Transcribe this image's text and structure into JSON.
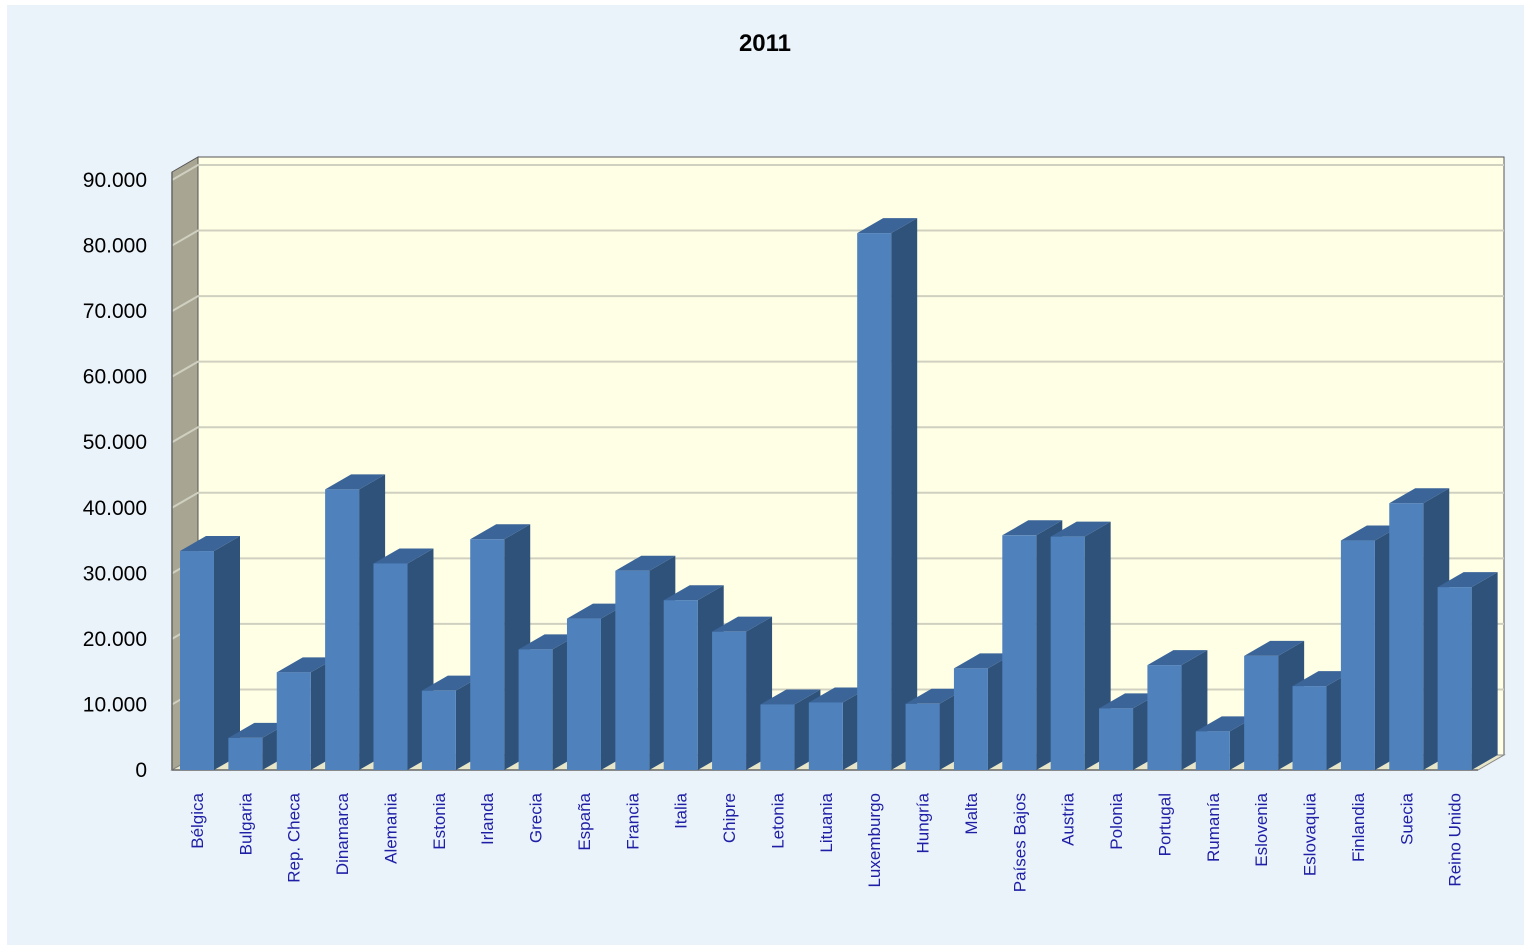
{
  "chart_data": {
    "type": "bar",
    "title": "2011",
    "xlabel": "",
    "ylabel": "",
    "ylim": [
      0,
      90000
    ],
    "yticks": [
      0,
      10000,
      20000,
      30000,
      40000,
      50000,
      60000,
      70000,
      80000,
      90000
    ],
    "ytick_labels": [
      "0",
      "10.000",
      "20.000",
      "30.000",
      "40.000",
      "50.000",
      "60.000",
      "70.000",
      "80.000",
      "90.000"
    ],
    "grid": true,
    "categories": [
      "Bélgica",
      "Bulgaria",
      "Rep. Checa",
      "Dinamarca",
      "Alemania",
      "Estonia",
      "Irlanda",
      "Grecia",
      "España",
      "Francia",
      "Italia",
      "Chipre",
      "Letonia",
      "Lituania",
      "Luxemburgo",
      "Hungría",
      "Malta",
      "Países Bajos",
      "Austria",
      "Polonia",
      "Portugal",
      "Rumanía",
      "Eslovenia",
      "Eslovaquia",
      "Finlandia",
      "Suecia",
      "Reino Unido"
    ],
    "values": [
      33400,
      4900,
      14900,
      42800,
      31500,
      12100,
      35200,
      18400,
      23100,
      30400,
      25900,
      21100,
      10000,
      10300,
      81900,
      10100,
      15500,
      35800,
      35600,
      9400,
      16000,
      5900,
      17400,
      12800,
      35000,
      40700,
      27900
    ],
    "colors": {
      "bar_front": "#4f81bd",
      "bar_side": "#2f527a",
      "bar_top": "#3b6599",
      "plot_bg": "#ffffe6",
      "wall_side": "#a8a593",
      "background": "#ebf3fa",
      "category_text": "#1f1fa6"
    }
  }
}
